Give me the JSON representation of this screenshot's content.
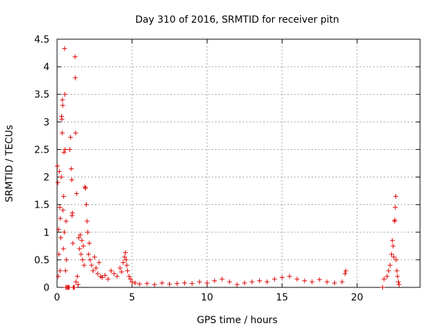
{
  "chart_data": {
    "type": "scatter",
    "title": "Day 310 of 2016, SRMTID for receiver pitn",
    "xlabel": "GPS time / hours",
    "ylabel": "SRMTID / TECUs",
    "xlim": [
      0,
      24.2
    ],
    "ylim": [
      0,
      4.5
    ],
    "xticks": [
      0,
      5,
      10,
      15,
      20
    ],
    "yticks": [
      0,
      0.5,
      1,
      1.5,
      2,
      2.5,
      3,
      3.5,
      4,
      4.5
    ],
    "xtick_labels": [
      "0",
      "5",
      "10",
      "15",
      "20"
    ],
    "ytick_labels": [
      "0",
      "0.5",
      "1",
      "1.5",
      "2",
      "2.5",
      "3",
      "3.5",
      "4",
      "4.5"
    ],
    "grid": true,
    "marker": "plus",
    "color": "#e00000",
    "series": [
      {
        "name": "SRMTID",
        "points": [
          [
            0.02,
            2.2
          ],
          [
            0.05,
            1.9
          ],
          [
            0.08,
            0.2
          ],
          [
            0.1,
            1.05
          ],
          [
            0.12,
            0.6
          ],
          [
            0.15,
            2.1
          ],
          [
            0.18,
            1.45
          ],
          [
            0.2,
            0.3
          ],
          [
            0.22,
            1.25
          ],
          [
            0.25,
            0.9
          ],
          [
            0.28,
            2.0
          ],
          [
            0.3,
            3.1
          ],
          [
            0.32,
            3.05
          ],
          [
            0.34,
            2.8
          ],
          [
            0.36,
            3.4
          ],
          [
            0.38,
            3.3
          ],
          [
            0.4,
            1.4
          ],
          [
            0.42,
            0.7
          ],
          [
            0.44,
            1.65
          ],
          [
            0.46,
            2.45
          ],
          [
            0.48,
            1.0
          ],
          [
            0.5,
            4.33
          ],
          [
            0.52,
            3.5
          ],
          [
            0.54,
            2.5
          ],
          [
            0.56,
            0.3
          ],
          [
            0.58,
            0.0
          ],
          [
            0.6,
            1.2
          ],
          [
            0.62,
            0.5
          ],
          [
            0.65,
            0.0
          ],
          [
            0.7,
            0.0
          ],
          [
            0.75,
            0.0
          ],
          [
            0.8,
            0.0
          ],
          [
            0.85,
            2.5
          ],
          [
            0.9,
            2.72
          ],
          [
            0.95,
            2.15
          ],
          [
            0.98,
            1.95
          ],
          [
            1.0,
            1.3
          ],
          [
            1.02,
            1.35
          ],
          [
            1.05,
            0.8
          ],
          [
            1.08,
            0.0
          ],
          [
            1.1,
            0.0
          ],
          [
            1.12,
            0.0
          ],
          [
            1.15,
            0.0
          ],
          [
            1.2,
            4.18
          ],
          [
            1.22,
            3.8
          ],
          [
            1.24,
            2.8
          ],
          [
            1.26,
            0.1
          ],
          [
            1.3,
            1.7
          ],
          [
            1.35,
            0.2
          ],
          [
            1.4,
            0.05
          ],
          [
            1.45,
            0.9
          ],
          [
            1.5,
            0.7
          ],
          [
            1.55,
            0.95
          ],
          [
            1.6,
            0.6
          ],
          [
            1.65,
            0.85
          ],
          [
            1.7,
            0.5
          ],
          [
            1.75,
            0.75
          ],
          [
            1.8,
            0.4
          ],
          [
            1.85,
            1.82
          ],
          [
            1.9,
            1.8
          ],
          [
            1.95,
            1.5
          ],
          [
            2.0,
            1.2
          ],
          [
            2.05,
            1.0
          ],
          [
            2.1,
            0.6
          ],
          [
            2.15,
            0.8
          ],
          [
            2.2,
            0.5
          ],
          [
            2.3,
            0.4
          ],
          [
            2.4,
            0.3
          ],
          [
            2.5,
            0.55
          ],
          [
            2.6,
            0.35
          ],
          [
            2.7,
            0.25
          ],
          [
            2.8,
            0.45
          ],
          [
            2.9,
            0.2
          ],
          [
            3.0,
            0.18
          ],
          [
            3.2,
            0.22
          ],
          [
            3.4,
            0.15
          ],
          [
            3.6,
            0.3
          ],
          [
            3.8,
            0.25
          ],
          [
            4.0,
            0.2
          ],
          [
            4.2,
            0.35
          ],
          [
            4.3,
            0.28
          ],
          [
            4.4,
            0.45
          ],
          [
            4.5,
            0.55
          ],
          [
            4.55,
            0.63
          ],
          [
            4.6,
            0.5
          ],
          [
            4.65,
            0.4
          ],
          [
            4.7,
            0.3
          ],
          [
            4.8,
            0.2
          ],
          [
            4.9,
            0.15
          ],
          [
            5.0,
            0.1
          ],
          [
            5.2,
            0.08
          ],
          [
            5.5,
            0.06
          ],
          [
            6.0,
            0.07
          ],
          [
            6.5,
            0.05
          ],
          [
            7.0,
            0.08
          ],
          [
            7.5,
            0.06
          ],
          [
            8.0,
            0.07
          ],
          [
            8.5,
            0.08
          ],
          [
            9.0,
            0.07
          ],
          [
            9.5,
            0.1
          ],
          [
            10.0,
            0.08
          ],
          [
            10.5,
            0.12
          ],
          [
            11.0,
            0.15
          ],
          [
            11.5,
            0.1
          ],
          [
            12.0,
            0.05
          ],
          [
            12.5,
            0.08
          ],
          [
            13.0,
            0.1
          ],
          [
            13.5,
            0.12
          ],
          [
            14.0,
            0.1
          ],
          [
            14.5,
            0.15
          ],
          [
            15.0,
            0.18
          ],
          [
            15.5,
            0.2
          ],
          [
            16.0,
            0.15
          ],
          [
            16.5,
            0.12
          ],
          [
            17.0,
            0.1
          ],
          [
            17.5,
            0.14
          ],
          [
            18.0,
            0.1
          ],
          [
            18.5,
            0.08
          ],
          [
            19.0,
            0.1
          ],
          [
            19.2,
            0.25
          ],
          [
            19.25,
            0.3
          ],
          [
            21.7,
            0.0
          ],
          [
            21.8,
            0.15
          ],
          [
            22.0,
            0.2
          ],
          [
            22.1,
            0.3
          ],
          [
            22.2,
            0.4
          ],
          [
            22.3,
            0.6
          ],
          [
            22.35,
            0.85
          ],
          [
            22.4,
            0.75
          ],
          [
            22.45,
            0.55
          ],
          [
            22.5,
            1.2
          ],
          [
            22.52,
            1.22
          ],
          [
            22.55,
            1.45
          ],
          [
            22.58,
            1.65
          ],
          [
            22.6,
            0.5
          ],
          [
            22.65,
            0.3
          ],
          [
            22.7,
            0.2
          ],
          [
            22.75,
            0.1
          ],
          [
            22.8,
            0.05
          ]
        ]
      }
    ]
  }
}
